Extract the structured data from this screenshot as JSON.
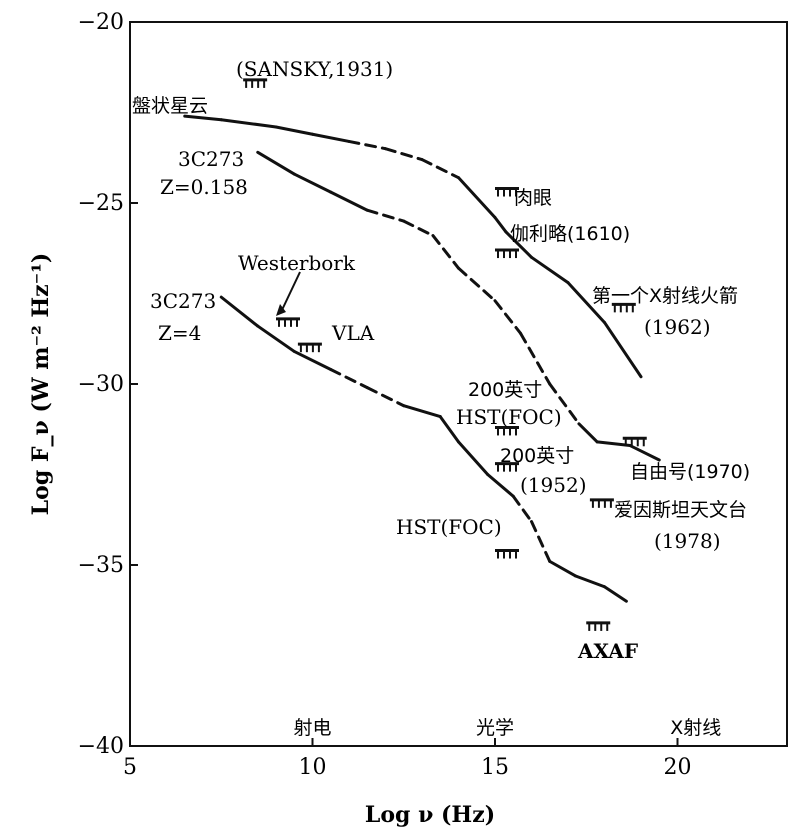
{
  "chart_data": {
    "type": "line",
    "xlabel": "Log ν (Hz)",
    "ylabel": "Log F_ν (W m⁻² Hz⁻¹)",
    "xlim": [
      5,
      23
    ],
    "ylim": [
      -40,
      -20
    ],
    "x_ticks": [
      "5",
      "10",
      "15",
      "20"
    ],
    "y_ticks": [
      "-20",
      "-25",
      "-30",
      "-35",
      "-40"
    ],
    "band_labels": [
      {
        "text": "射电",
        "x": 10
      },
      {
        "text": "光学",
        "x": 15
      },
      {
        "text": "X射线",
        "x": 20.5
      }
    ],
    "series": [
      {
        "name": "盤状星云",
        "points": [
          [
            6.5,
            -22.6
          ],
          [
            7.5,
            -22.7
          ],
          [
            9,
            -22.9
          ],
          [
            10,
            -23.1
          ],
          [
            11,
            -23.3
          ],
          [
            12,
            -23.5
          ],
          [
            13,
            -23.8
          ],
          [
            14,
            -24.3
          ],
          [
            15,
            -25.4
          ],
          [
            15.3,
            -25.8
          ],
          [
            16,
            -26.5
          ],
          [
            17,
            -27.2
          ],
          [
            18,
            -28.3
          ],
          [
            19,
            -29.8
          ]
        ],
        "dashed_x": [
          11.5,
          14.2
        ]
      },
      {
        "name": "3C273 Z=0.158",
        "points": [
          [
            8.5,
            -23.6
          ],
          [
            9.5,
            -24.2
          ],
          [
            10.5,
            -24.7
          ],
          [
            11.5,
            -25.2
          ],
          [
            12.5,
            -25.5
          ],
          [
            13.3,
            -25.9
          ],
          [
            14,
            -26.8
          ],
          [
            15,
            -27.7
          ],
          [
            15.7,
            -28.6
          ],
          [
            16.5,
            -30
          ],
          [
            17.3,
            -31.1
          ],
          [
            17.8,
            -31.6
          ],
          [
            18.7,
            -31.7
          ],
          [
            19.5,
            -32.1
          ]
        ],
        "dashed_x": [
          11.6,
          17.1
        ]
      },
      {
        "name": "3C273 Z=4",
        "points": [
          [
            7.5,
            -27.6
          ],
          [
            8.5,
            -28.4
          ],
          [
            9.5,
            -29.1
          ],
          [
            10.5,
            -29.6
          ],
          [
            11.5,
            -30.1
          ],
          [
            12.5,
            -30.6
          ],
          [
            13.5,
            -30.9
          ],
          [
            14,
            -31.6
          ],
          [
            14.8,
            -32.5
          ],
          [
            15.5,
            -33.1
          ],
          [
            16,
            -33.8
          ],
          [
            16.5,
            -34.9
          ],
          [
            17.2,
            -35.3
          ],
          [
            18,
            -35.6
          ],
          [
            18.6,
            -36
          ]
        ],
        "dashed_x": [
          10.6,
          12.5,
          15.5,
          16.6
        ]
      }
    ],
    "limits": [
      {
        "label": "(SANSKY,1931)",
        "x": 8.1,
        "y": -21.6
      },
      {
        "label": "Westerbork",
        "x": 9.0,
        "y": -28.2
      },
      {
        "label": "VLA",
        "x": 9.6,
        "y": -28.9
      },
      {
        "label": "肉眼",
        "x": 15.0,
        "y": -24.6
      },
      {
        "label": "伽利略(1610)",
        "x": 15.0,
        "y": -26.3
      },
      {
        "label": "第一个X射线火箭 (1962)",
        "x": 18.2,
        "y": -27.8
      },
      {
        "label": "200英寸 HST(FOC)",
        "x": 15.0,
        "y": -31.2
      },
      {
        "label": "200英寸 (1952)",
        "x": 15.0,
        "y": -32.2
      },
      {
        "label": "自由号(1970)",
        "x": 18.5,
        "y": -31.5
      },
      {
        "label": "爱因斯坦天文台 (1978)",
        "x": 17.6,
        "y": -33.2
      },
      {
        "label": "HST(FOC)",
        "x": 15.0,
        "y": -34.6
      },
      {
        "label": "AXAF",
        "x": 17.5,
        "y": -36.6
      }
    ]
  },
  "labels": {
    "sansky": "(SANSKY,1931)",
    "disk_nebula": "盤状星云",
    "c3c273_a": "3C273",
    "z_0158": "Z=0.158",
    "westerbork": "Westerbork",
    "c3c273_b": "3C273",
    "z_4": "Z=4",
    "vla": "VLA",
    "naked_eye": "肉眼",
    "galileo": "伽利略(1610)",
    "first_xray_1": "第一个X射线火箭",
    "first_xray_2": "(1962)",
    "inch200_a": "200英寸",
    "hst_foc_a": "HST(FOC)",
    "inch200_b": "200英寸",
    "year_1952": "(1952)",
    "uhuru": "自由号(1970)",
    "einstein_1": "爱因斯坦天文台",
    "einstein_2": "(1978)",
    "hst_foc_b": "HST(FOC)",
    "axaf": "AXAF"
  }
}
